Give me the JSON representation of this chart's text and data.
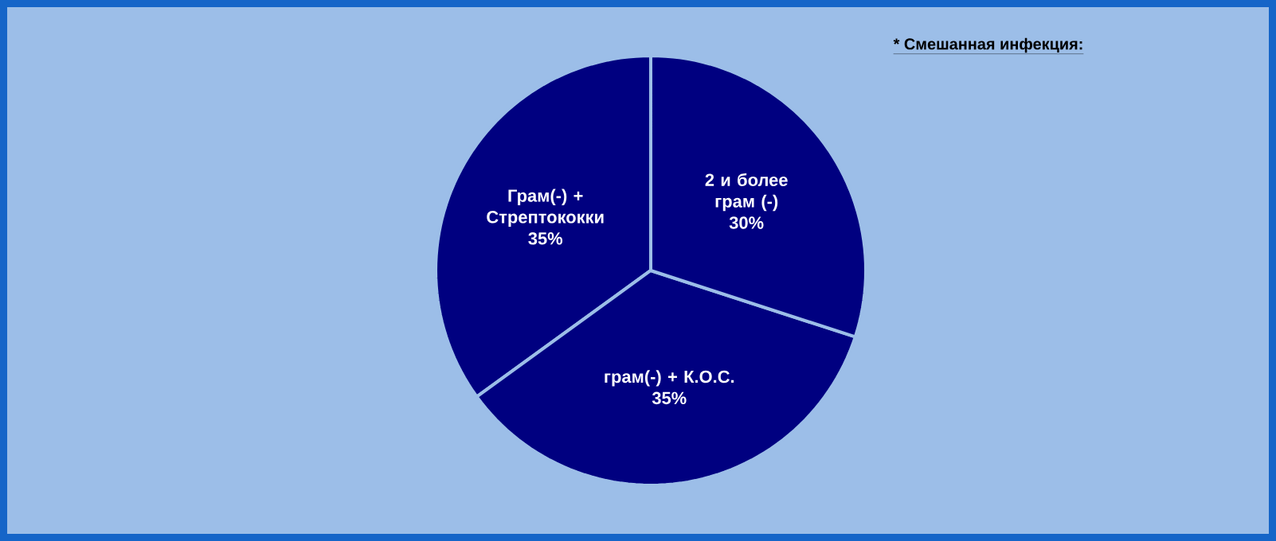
{
  "chart_data": {
    "type": "pie",
    "title": "* Смешанная инфекция:",
    "categories": [
      "Грам(-) + Стрептококки",
      "грам(-) + К.О.С.",
      "2 и более грам (-)"
    ],
    "values": [
      35,
      35,
      30
    ],
    "value_labels": [
      "35%",
      "35%",
      "30%"
    ],
    "colors": [
      "#000080",
      "#000080",
      "#000080"
    ]
  }
}
